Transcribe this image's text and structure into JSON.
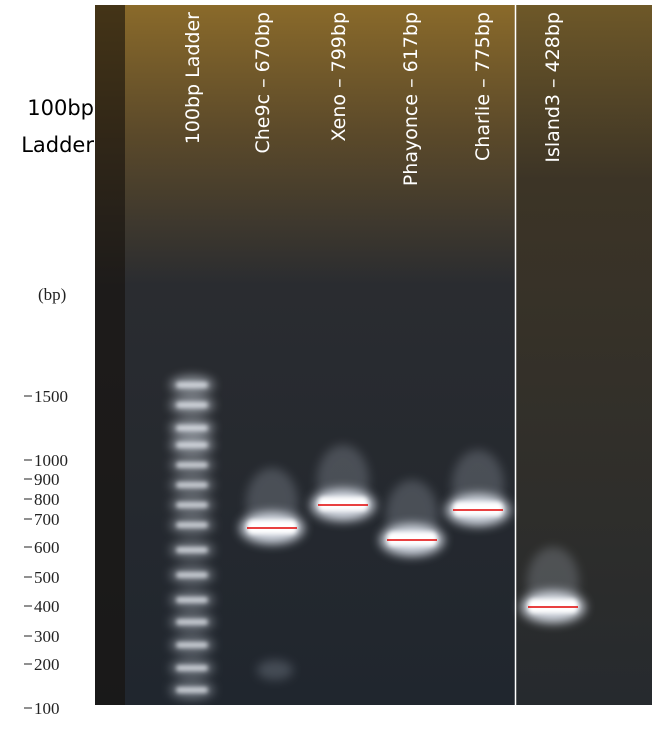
{
  "side_label": [
    "100bp",
    "Ladder"
  ],
  "scale": {
    "unit": "(bp)",
    "ticks": [
      1500,
      1000,
      900,
      800,
      700,
      600,
      500,
      400,
      300,
      200,
      100
    ]
  },
  "lanes": [
    "100bp Ladder",
    "Che9c – 670bp",
    "Xeno – 799bp",
    "Phayonce – 617bp",
    "Charlie – 775bp",
    "Island3 – 428bp"
  ]
}
